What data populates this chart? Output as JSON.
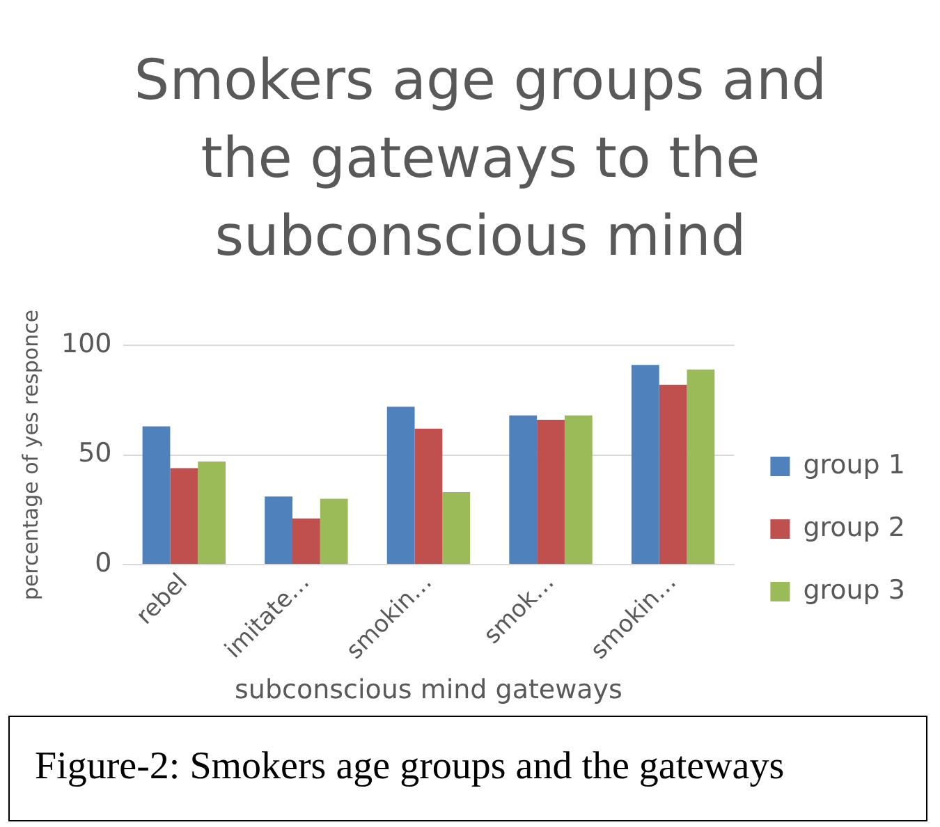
{
  "chart_data": {
    "type": "bar",
    "title": "Smokers age groups and the gateways to the subconscious mind",
    "xlabel": "subconscious mind gateways",
    "ylabel": "percentage of yes responce",
    "categories": [
      "rebel",
      "imitate…",
      "smokin…",
      "smok…",
      "smokin…"
    ],
    "series": [
      {
        "name": "group 1",
        "color": "#4f81bd",
        "values": [
          63,
          31,
          72,
          68,
          91
        ]
      },
      {
        "name": "group 2",
        "color": "#c0504d",
        "values": [
          44,
          21,
          62,
          66,
          82
        ]
      },
      {
        "name": "group 3",
        "color": "#9bbb59",
        "values": [
          47,
          30,
          33,
          68,
          89
        ]
      }
    ],
    "ylim": [
      0,
      100
    ],
    "yticks": [
      0,
      50,
      100
    ],
    "grid": "y",
    "legend": "right",
    "annotations": [
      "Figure-2: Smokers age groups and the gateways"
    ]
  }
}
